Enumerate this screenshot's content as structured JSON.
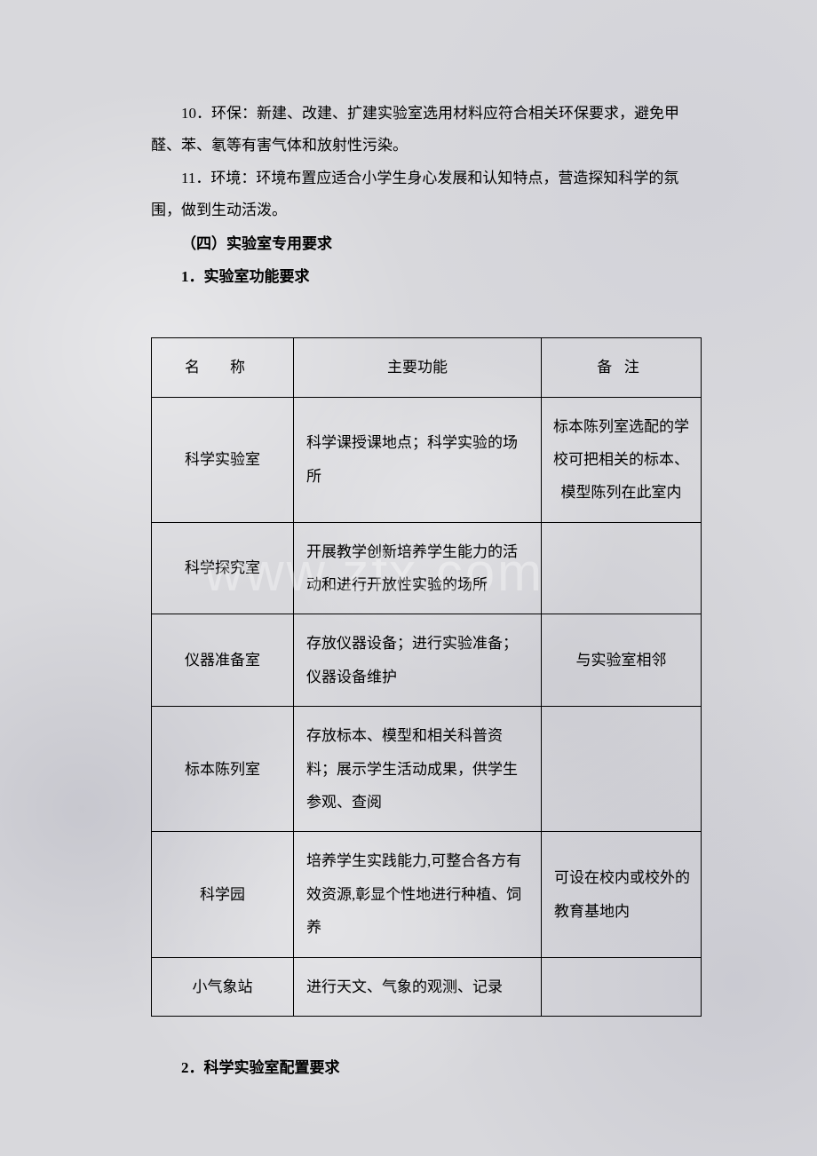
{
  "paragraphs": {
    "p10": "10．环保：新建、改建、扩建实验室选用材料应符合相关环保要求，避免甲醛、苯、氡等有害气体和放射性污染。",
    "p11": "11．环境：环境布置应适合小学生身心发展和认知特点，营造探知科学的氛围，做到生动活泼。"
  },
  "headings": {
    "section4": "（四）实验室专用要求",
    "sub1": "1．实验室功能要求",
    "sub2": "2．科学实验室配置要求"
  },
  "table": {
    "headers": {
      "name": "名称",
      "func": "主要功能",
      "note": "备注"
    },
    "rows": [
      {
        "name": "科学实验室",
        "func": "科学课授课地点；科学实验的场所",
        "note": "标本陈列室选配的学校可把相关的标本、模型陈列在此室内"
      },
      {
        "name": "科学探究室",
        "func": "开展教学创新培养学生能力的活动和进行开放性实验的场所",
        "note": ""
      },
      {
        "name": "仪器准备室",
        "func": "存放仪器设备；进行实验准备；仪器设备维护",
        "note": "与实验室相邻"
      },
      {
        "name": "标本陈列室",
        "func": "存放标本、模型和相关科普资料；展示学生活动成果，供学生参观、查阅",
        "note": ""
      },
      {
        "name": "科学园",
        "func": "培养学生实践能力,可整合各方有效资源,彰显个性地进行种植、饲养",
        "note": "可设在校内或校外的教育基地内"
      },
      {
        "name": "小气象站",
        "func": "进行天文、气象的观测、记录",
        "note": ""
      }
    ]
  },
  "watermark": "www.zfx.com"
}
